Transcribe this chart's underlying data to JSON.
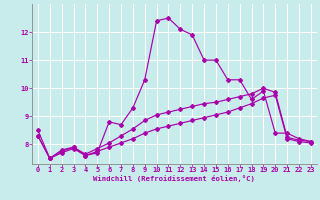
{
  "bg_color": "#c8ecec",
  "grid_color": "#ffffff",
  "line_color": "#aa00aa",
  "xlabel": "Windchill (Refroidissement éolien,°C)",
  "xlim": [
    -0.5,
    23.5
  ],
  "ylim": [
    7.3,
    13.0
  ],
  "xticks": [
    0,
    1,
    2,
    3,
    4,
    5,
    6,
    7,
    8,
    9,
    10,
    11,
    12,
    13,
    14,
    15,
    16,
    17,
    18,
    19,
    20,
    21,
    22,
    23
  ],
  "yticks": [
    8,
    9,
    10,
    11,
    12
  ],
  "line1_x": [
    0,
    1,
    2,
    3,
    4,
    5,
    6,
    7,
    8,
    9,
    10,
    11,
    12,
    13,
    14,
    15,
    16,
    17,
    18,
    19,
    20,
    21,
    22,
    23
  ],
  "line1_y": [
    8.5,
    7.5,
    7.8,
    7.9,
    7.6,
    7.7,
    8.8,
    8.7,
    9.3,
    10.3,
    12.4,
    12.5,
    12.1,
    11.9,
    11.0,
    11.0,
    10.3,
    10.3,
    9.6,
    9.9,
    8.4,
    8.4,
    8.2,
    8.1
  ],
  "line2_x": [
    0,
    1,
    2,
    3,
    4,
    5,
    6,
    7,
    8,
    9,
    10,
    11,
    12,
    13,
    14,
    15,
    16,
    17,
    18,
    19,
    20,
    21,
    22,
    23
  ],
  "line2_y": [
    8.3,
    7.5,
    7.7,
    7.85,
    7.6,
    7.75,
    7.9,
    8.05,
    8.2,
    8.4,
    8.55,
    8.65,
    8.75,
    8.85,
    8.95,
    9.05,
    9.15,
    9.3,
    9.45,
    9.65,
    9.75,
    8.2,
    8.1,
    8.05
  ],
  "line3_x": [
    0,
    1,
    2,
    3,
    4,
    5,
    6,
    7,
    8,
    9,
    10,
    11,
    12,
    13,
    14,
    15,
    16,
    17,
    18,
    19,
    20,
    21,
    22,
    23
  ],
  "line3_y": [
    8.3,
    7.5,
    7.75,
    7.9,
    7.65,
    7.85,
    8.05,
    8.3,
    8.55,
    8.85,
    9.05,
    9.15,
    9.25,
    9.35,
    9.45,
    9.5,
    9.6,
    9.7,
    9.8,
    10.0,
    9.85,
    8.25,
    8.15,
    8.1
  ]
}
